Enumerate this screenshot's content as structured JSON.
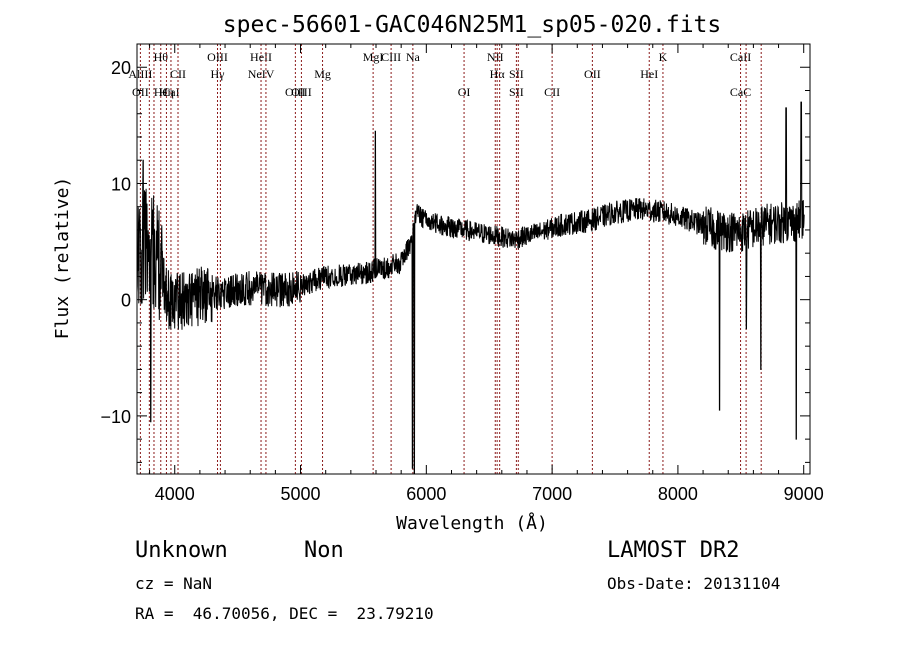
{
  "chart_data": {
    "type": "line",
    "title": "spec-56601-GAC046N25M1_sp05-020.fits",
    "xlabel": "Wavelength (Å)",
    "ylabel": "Flux (relative)",
    "xlim": [
      3700,
      9050
    ],
    "ylim": [
      -15,
      22
    ],
    "x_ticks": [
      4000,
      5000,
      6000,
      7000,
      8000,
      9000
    ],
    "y_ticks": [
      -10,
      0,
      10,
      20
    ],
    "x_tick_labels": [
      "4000",
      "5000",
      "6000",
      "7000",
      "8000",
      "9000"
    ],
    "y_tick_labels": [
      "−10",
      "0",
      "10",
      "20"
    ],
    "grid": false,
    "line_color": "#000000",
    "marker_color": "#8b1a1a",
    "line_markers": [
      {
        "wavelength": 3727,
        "top": "",
        "mid": "AlIII",
        "low": "OII"
      },
      {
        "wavelength": 3798,
        "top": "",
        "mid": "",
        "low": ""
      },
      {
        "wavelength": 3835,
        "top": "",
        "mid": "",
        "low": ""
      },
      {
        "wavelength": 3889,
        "top": "Hθ",
        "mid": "",
        "low": "Hε"
      },
      {
        "wavelength": 3934,
        "top": "",
        "mid": "",
        "low": "Hη"
      },
      {
        "wavelength": 3970,
        "top": "",
        "mid": "",
        "low": "CaI"
      },
      {
        "wavelength": 4026,
        "top": "",
        "mid": "CII",
        "low": ""
      },
      {
        "wavelength": 4340,
        "top": "OIII",
        "mid": "Hγ",
        "low": ""
      },
      {
        "wavelength": 4363,
        "top": "",
        "mid": "",
        "low": ""
      },
      {
        "wavelength": 4686,
        "top": "HeII",
        "mid": "NeIV",
        "low": ""
      },
      {
        "wavelength": 4725,
        "top": "",
        "mid": "",
        "low": ""
      },
      {
        "wavelength": 4959,
        "top": "",
        "mid": "",
        "low": "OIII"
      },
      {
        "wavelength": 5007,
        "top": "",
        "mid": "",
        "low": "OIII"
      },
      {
        "wavelength": 5175,
        "top": "",
        "mid": "Mg",
        "low": ""
      },
      {
        "wavelength": 5577,
        "top": "MgI",
        "mid": "",
        "low": ""
      },
      {
        "wavelength": 5720,
        "top": "CIII",
        "mid": "",
        "low": ""
      },
      {
        "wavelength": 5893,
        "top": "Na",
        "mid": "",
        "low": ""
      },
      {
        "wavelength": 6300,
        "top": "",
        "mid": "",
        "low": "OI"
      },
      {
        "wavelength": 6548,
        "top": "NII",
        "mid": "",
        "low": ""
      },
      {
        "wavelength": 6563,
        "top": "",
        "mid": "Hα",
        "low": ""
      },
      {
        "wavelength": 6583,
        "top": "",
        "mid": "",
        "low": ""
      },
      {
        "wavelength": 6716,
        "top": "",
        "mid": "SII",
        "low": "SII"
      },
      {
        "wavelength": 6731,
        "top": "",
        "mid": "",
        "low": ""
      },
      {
        "wavelength": 7000,
        "top": "",
        "mid": "",
        "low": "CII"
      },
      {
        "wavelength": 7320,
        "top": "",
        "mid": "OII",
        "low": ""
      },
      {
        "wavelength": 7772,
        "top": "",
        "mid": "HeI",
        "low": ""
      },
      {
        "wavelength": 7881,
        "top": "K",
        "mid": "",
        "low": ""
      },
      {
        "wavelength": 8498,
        "top": "CaII",
        "mid": "",
        "low": "CaC"
      },
      {
        "wavelength": 8542,
        "top": "",
        "mid": "",
        "low": ""
      },
      {
        "wavelength": 8662,
        "top": "",
        "mid": "",
        "low": ""
      }
    ],
    "spectrum_anchors": [
      [
        3700,
        3.0
      ],
      [
        3760,
        5.0
      ],
      [
        3850,
        4.0
      ],
      [
        3950,
        0.0
      ],
      [
        4100,
        0.0
      ],
      [
        4300,
        0.5
      ],
      [
        4600,
        1.0
      ],
      [
        4900,
        0.8
      ],
      [
        5200,
        2.0
      ],
      [
        5500,
        2.2
      ],
      [
        5600,
        2.6
      ],
      [
        5700,
        2.8
      ],
      [
        5800,
        3.2
      ],
      [
        5880,
        5.0
      ],
      [
        5920,
        7.5
      ],
      [
        6000,
        6.8
      ],
      [
        6200,
        6.2
      ],
      [
        6400,
        5.8
      ],
      [
        6700,
        5.2
      ],
      [
        6900,
        5.8
      ],
      [
        7100,
        6.5
      ],
      [
        7300,
        6.8
      ],
      [
        7500,
        7.5
      ],
      [
        7700,
        7.8
      ],
      [
        7900,
        7.5
      ],
      [
        8100,
        6.8
      ],
      [
        8300,
        6.0
      ],
      [
        8500,
        5.8
      ],
      [
        8700,
        6.5
      ],
      [
        9000,
        6.8
      ]
    ],
    "spectrum_features": [
      {
        "wavelength": 5595,
        "flux": 14.5
      },
      {
        "wavelength": 5890,
        "flux": -14.5
      },
      {
        "wavelength": 5905,
        "flux": -15.0
      },
      {
        "wavelength": 8330,
        "flux": -9.5
      },
      {
        "wavelength": 8545,
        "flux": -2.5
      },
      {
        "wavelength": 8660,
        "flux": -6.0
      },
      {
        "wavelength": 8940,
        "flux": -12.0
      },
      {
        "wavelength": 8980,
        "flux": 17.0
      },
      {
        "wavelength": 8860,
        "flux": 16.5
      },
      {
        "wavelength": 3810,
        "flux": -10.5
      },
      {
        "wavelength": 3750,
        "flux": 12.0
      }
    ]
  },
  "info": {
    "object_type": "Unknown",
    "subclass": "Non",
    "redshift": "cz = NaN",
    "coords": "RA =  46.70056, DEC =  23.79210",
    "survey": "LAMOST DR2",
    "obs_date": "Obs-Date: 20131104"
  }
}
